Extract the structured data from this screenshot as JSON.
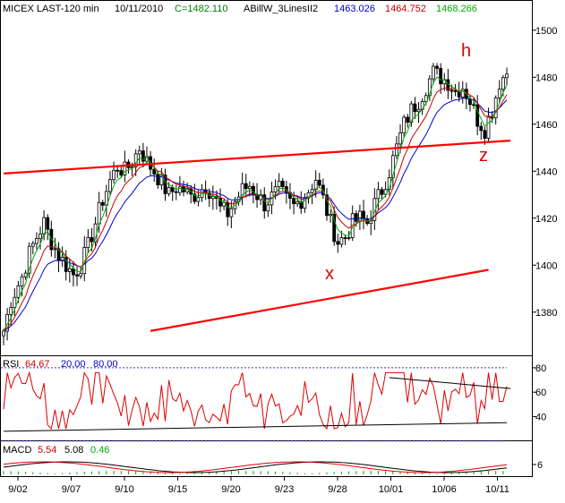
{
  "header": {
    "parts": [
      {
        "text": "MICEX LAST-120 min",
        "color": "#000000"
      },
      {
        "text": "10/11/2010",
        "color": "#000000"
      },
      {
        "text": "C=1482.110",
        "color": "#008000"
      },
      {
        "text": "ABillW_3LinesII2",
        "color": "#000000"
      },
      {
        "text": "1463.026",
        "color": "#0000cc"
      },
      {
        "text": "1464.752",
        "color": "#cc0000"
      },
      {
        "text": "1468.266",
        "color": "#00aa00"
      }
    ]
  },
  "annotations": {
    "h": "h",
    "z": "z",
    "x": "x"
  },
  "chart_data": [
    {
      "type": "candlestick",
      "panel": "price",
      "title": "MICEX LAST-120 min",
      "date": "10/11/2010",
      "close_label": "C=1482.110",
      "indicator_name": "ABillW_3LinesII2",
      "y_axis_ticks": [
        1380,
        1400,
        1420,
        1440,
        1460,
        1480,
        1500
      ],
      "ylim": [
        1362,
        1506
      ],
      "x_tick_labels": [
        "9/02",
        "9/07",
        "9/10",
        "9/15",
        "9/20",
        "9/23",
        "9/28",
        "10/01",
        "10/06",
        "10/11"
      ],
      "price_path": [
        [
          0,
          1372
        ],
        [
          2,
          1385
        ],
        [
          5,
          1395
        ],
        [
          7,
          1405
        ],
        [
          9,
          1412
        ],
        [
          11,
          1418
        ],
        [
          13,
          1410
        ],
        [
          15,
          1404
        ],
        [
          17,
          1400
        ],
        [
          19,
          1396
        ],
        [
          21,
          1400
        ],
        [
          23,
          1408
        ],
        [
          25,
          1418
        ],
        [
          27,
          1428
        ],
        [
          29,
          1436
        ],
        [
          31,
          1442
        ],
        [
          33,
          1440
        ],
        [
          35,
          1444
        ],
        [
          37,
          1450
        ],
        [
          39,
          1444
        ],
        [
          41,
          1440
        ],
        [
          43,
          1435
        ],
        [
          45,
          1430
        ],
        [
          47,
          1433
        ],
        [
          49,
          1432
        ],
        [
          51,
          1429
        ],
        [
          53,
          1431
        ],
        [
          55,
          1434
        ],
        [
          57,
          1430
        ],
        [
          59,
          1424
        ],
        [
          61,
          1422
        ],
        [
          63,
          1427
        ],
        [
          65,
          1432
        ],
        [
          67,
          1434
        ],
        [
          69,
          1430
        ],
        [
          71,
          1426
        ],
        [
          73,
          1429
        ],
        [
          75,
          1432
        ],
        [
          77,
          1428
        ],
        [
          79,
          1425
        ],
        [
          81,
          1428
        ],
        [
          83,
          1432
        ],
        [
          85,
          1437
        ],
        [
          87,
          1428
        ],
        [
          89,
          1418
        ],
        [
          91,
          1410
        ],
        [
          93,
          1412
        ],
        [
          95,
          1418
        ],
        [
          97,
          1420
        ],
        [
          99,
          1418
        ],
        [
          101,
          1426
        ],
        [
          103,
          1432
        ],
        [
          105,
          1440
        ],
        [
          107,
          1450
        ],
        [
          109,
          1460
        ],
        [
          111,
          1466
        ],
        [
          113,
          1470
        ],
        [
          115,
          1476
        ],
        [
          117,
          1482
        ],
        [
          119,
          1480
        ],
        [
          121,
          1478
        ],
        [
          123,
          1474
        ],
        [
          125,
          1476
        ],
        [
          127,
          1470
        ],
        [
          129,
          1462
        ],
        [
          131,
          1458
        ],
        [
          133,
          1466
        ],
        [
          135,
          1478
        ],
        [
          137,
          1482
        ]
      ],
      "series": [
        {
          "name": "1463.026",
          "color": "#0000cc",
          "ma_period": 14
        },
        {
          "name": "1464.752",
          "color": "#cc0000",
          "ma_period": 8
        },
        {
          "name": "1468.266",
          "color": "#00aa00",
          "ma_period": 4
        }
      ],
      "trendlines": [
        {
          "color": "#ff0000",
          "points": [
            [
              0,
              1439
            ],
            [
              138,
              1453
            ]
          ]
        },
        {
          "color": "#ff0000",
          "points": [
            [
              40,
              1372
            ],
            [
              132,
              1398
            ]
          ]
        }
      ]
    },
    {
      "type": "line",
      "panel": "rsi",
      "labels": [
        "RSI",
        "64.67",
        "20.00",
        "80.00"
      ],
      "label_colors": [
        "#000000",
        "#cc0000",
        "#0000cc",
        "#0000cc"
      ],
      "value": 64.67,
      "levels": [
        20,
        80
      ],
      "y_axis_ticks": [
        40,
        60,
        80
      ],
      "ylim": [
        22,
        88
      ],
      "grid": false,
      "trendlines": [
        {
          "color": "#000000",
          "points": [
            [
              0,
              28
            ],
            [
              137,
              35
            ]
          ]
        },
        {
          "color": "#000000",
          "points": [
            [
              105,
              72
            ],
            [
              138,
              63
            ]
          ]
        }
      ]
    },
    {
      "type": "line",
      "panel": "macd",
      "labels": [
        "MACD",
        "5.54",
        "5.08",
        "0.46"
      ],
      "label_colors": [
        "#000000",
        "#cc0000",
        "#000000",
        "#00aa00"
      ],
      "series": [
        {
          "name": "5.54",
          "color": "#cc0000"
        },
        {
          "name": "5.08",
          "color": "#000000"
        },
        {
          "name": "0.46",
          "color": "#00aa00",
          "kind": "histogram"
        }
      ],
      "y_axis_ticks": [
        6
      ]
    }
  ]
}
